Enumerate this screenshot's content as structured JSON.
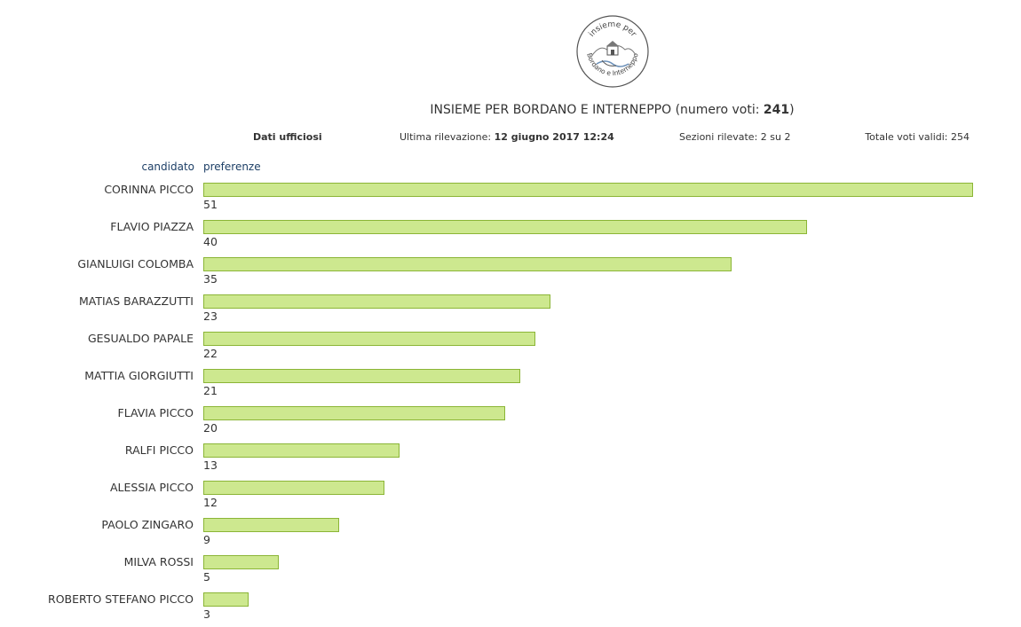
{
  "logo": {
    "top_text": "insieme per",
    "bottom_text": "Bordano e Interneppo",
    "icon": "church-hills-handshake-logo",
    "colors": {
      "stroke": "#555555",
      "accent": "#6a8fb8"
    }
  },
  "header": {
    "title_prefix": "INSIEME PER BORDANO E INTERNEPPO (numero voti: ",
    "vote_count": "241",
    "title_suffix": ")"
  },
  "info": {
    "official": "Dati ufficiosi",
    "last_update_label": "Ultima rilevazione: ",
    "last_update_value": "12 giugno 2017 12:24",
    "sections": "Sezioni rilevate: 2 su 2",
    "total_valid": "Totale voti validi: 254"
  },
  "columns": {
    "candidate": "candidato",
    "preferences": "preferenze"
  },
  "colors": {
    "bar_fill": "#cde88f",
    "bar_stroke": "#8bb536",
    "header_text": "#1d3f66"
  },
  "chart_data": {
    "type": "bar",
    "orientation": "horizontal",
    "categories": [
      "CORINNA PICCO",
      "FLAVIO PIAZZA",
      "GIANLUIGI COLOMBA",
      "MATIAS BARAZZUTTI",
      "GESUALDO PAPALE",
      "MATTIA GIORGIUTTI",
      "FLAVIA PICCO",
      "RALFI PICCO",
      "ALESSIA PICCO",
      "PAOLO ZINGARO",
      "MILVA ROSSI",
      "ROBERTO STEFANO PICCO"
    ],
    "values": [
      51,
      40,
      35,
      23,
      22,
      21,
      20,
      13,
      12,
      9,
      5,
      3
    ],
    "xlim": [
      0,
      51
    ],
    "grid": false,
    "legend": "none"
  }
}
